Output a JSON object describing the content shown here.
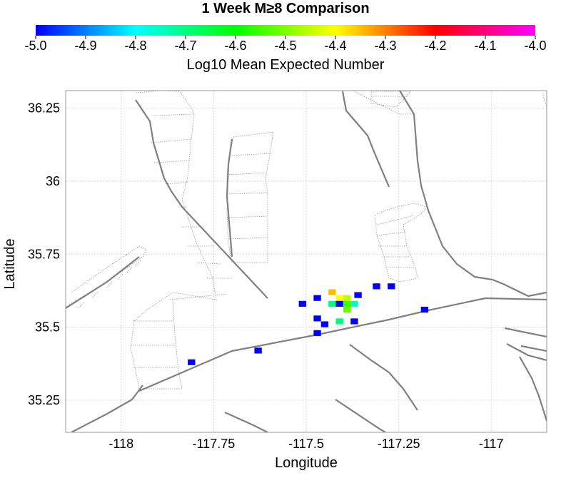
{
  "chart_data": {
    "type": "heatmap",
    "title": "1 Week M≥8 Comparison",
    "xlabel": "Longitude",
    "ylabel": "Latitude",
    "xlim": [
      -118.15,
      -116.85
    ],
    "ylim": [
      35.14,
      36.31
    ],
    "x_ticks": [
      {
        "value": -118,
        "label": "-118"
      },
      {
        "value": -117.75,
        "label": "-117.75"
      },
      {
        "value": -117.5,
        "label": "-117.5"
      },
      {
        "value": -117.25,
        "label": "-117.25"
      },
      {
        "value": -117,
        "label": "-117"
      }
    ],
    "y_ticks": [
      {
        "value": 36.25,
        "label": "36.25"
      },
      {
        "value": 36,
        "label": "36"
      },
      {
        "value": 35.75,
        "label": "35.75"
      },
      {
        "value": 35.5,
        "label": "35.5"
      },
      {
        "value": 35.25,
        "label": "35.25"
      }
    ],
    "grid": true,
    "colorbar": {
      "label": "Log10 Mean Expected Number",
      "range": [
        -5.0,
        -4.0
      ],
      "ticks": [
        {
          "value": -5.0,
          "label": "-5.0"
        },
        {
          "value": -4.9,
          "label": "-4.9"
        },
        {
          "value": -4.8,
          "label": "-4.8"
        },
        {
          "value": -4.7,
          "label": "-4.7"
        },
        {
          "value": -4.6,
          "label": "-4.6"
        },
        {
          "value": -4.5,
          "label": "-4.5"
        },
        {
          "value": -4.4,
          "label": "-4.4"
        },
        {
          "value": -4.3,
          "label": "-4.3"
        },
        {
          "value": -4.2,
          "label": "-4.2"
        },
        {
          "value": -4.1,
          "label": "-4.1"
        },
        {
          "value": -4.0,
          "label": "-4.0"
        }
      ],
      "colors": [
        "#0000ff",
        "#00ffff",
        "#00ff00",
        "#ffff00",
        "#ff0000",
        "#ff00ff"
      ]
    },
    "cells": [
      {
        "lon": -117.81,
        "lat": 35.38,
        "value": -5.0
      },
      {
        "lon": -117.63,
        "lat": 35.42,
        "value": -5.0
      },
      {
        "lon": -117.51,
        "lat": 35.58,
        "value": -5.0
      },
      {
        "lon": -117.47,
        "lat": 35.6,
        "value": -5.0
      },
      {
        "lon": -117.47,
        "lat": 35.53,
        "value": -5.0
      },
      {
        "lon": -117.45,
        "lat": 35.51,
        "value": -5.0
      },
      {
        "lon": -117.47,
        "lat": 35.48,
        "value": -5.0
      },
      {
        "lon": -117.43,
        "lat": 35.62,
        "value": -4.35
      },
      {
        "lon": -117.41,
        "lat": 35.6,
        "value": -4.4
      },
      {
        "lon": -117.39,
        "lat": 35.6,
        "value": -4.45
      },
      {
        "lon": -117.43,
        "lat": 35.58,
        "value": -4.7
      },
      {
        "lon": -117.41,
        "lat": 35.58,
        "value": -5.0
      },
      {
        "lon": -117.39,
        "lat": 35.58,
        "value": -4.55
      },
      {
        "lon": -117.39,
        "lat": 35.56,
        "value": -4.52
      },
      {
        "lon": -117.37,
        "lat": 35.58,
        "value": -4.75
      },
      {
        "lon": -117.36,
        "lat": 35.61,
        "value": -5.0
      },
      {
        "lon": -117.41,
        "lat": 35.52,
        "value": -4.7
      },
      {
        "lon": -117.37,
        "lat": 35.52,
        "value": -5.0
      },
      {
        "lon": -117.31,
        "lat": 35.64,
        "value": -5.0
      },
      {
        "lon": -117.27,
        "lat": 35.64,
        "value": -5.0
      },
      {
        "lon": -117.18,
        "lat": 35.56,
        "value": -5.0
      }
    ]
  }
}
